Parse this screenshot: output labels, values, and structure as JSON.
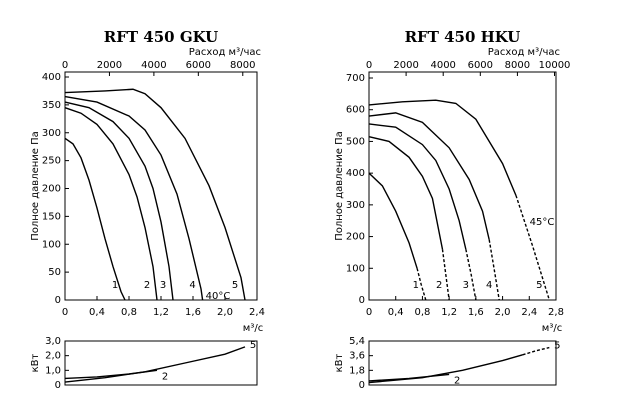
{
  "chart_data": [
    {
      "type": "line",
      "title": "RFT 450 GKU",
      "x_label": "м³/с",
      "x2_label": "Расход м³/час",
      "y_label": "Полное давление Па",
      "xlim": [
        0,
        2.4
      ],
      "xticks": [
        0,
        {
          "value": 0.4,
          "label": "0,4"
        },
        {
          "value": 0.8,
          "label": "0,8"
        },
        {
          "value": 1.2,
          "label": "1,2"
        },
        {
          "value": 1.6,
          "label": "1,6"
        },
        {
          "value": 2,
          "label": "2,0"
        },
        {
          "value": 2.4,
          "label": "2,4"
        }
      ],
      "x2lim": [
        0,
        8640
      ],
      "x2ticks": [
        0,
        2000,
        4000,
        6000,
        8000
      ],
      "ylim": [
        0,
        400
      ],
      "yticks": [
        0,
        50,
        100,
        150,
        200,
        250,
        300,
        350,
        400
      ],
      "annotation": "40°C",
      "color": "#000000",
      "series": [
        {
          "name": "1",
          "dashed_tail": false,
          "x": [
            0,
            0.1,
            0.2,
            0.3,
            0.4,
            0.5,
            0.6,
            0.7,
            0.75
          ],
          "values": [
            290,
            280,
            255,
            215,
            165,
            110,
            60,
            15,
            0
          ]
        },
        {
          "name": "2",
          "dashed_tail": false,
          "x": [
            0,
            0.2,
            0.4,
            0.6,
            0.8,
            0.9,
            1.0,
            1.1,
            1.15
          ],
          "values": [
            345,
            335,
            315,
            280,
            225,
            185,
            130,
            60,
            0
          ]
        },
        {
          "name": "3",
          "dashed_tail": false,
          "x": [
            0,
            0.3,
            0.6,
            0.8,
            1.0,
            1.1,
            1.2,
            1.3,
            1.35
          ],
          "values": [
            355,
            345,
            320,
            290,
            240,
            200,
            140,
            60,
            0
          ]
        },
        {
          "name": "4",
          "dashed_tail": false,
          "x": [
            0,
            0.4,
            0.8,
            1.0,
            1.2,
            1.4,
            1.55,
            1.7,
            1.72
          ],
          "values": [
            365,
            355,
            330,
            305,
            260,
            190,
            110,
            20,
            0
          ]
        },
        {
          "name": "5",
          "dashed_tail": false,
          "x": [
            0,
            0.5,
            0.85,
            1.0,
            1.2,
            1.5,
            1.8,
            2.0,
            2.2,
            2.25
          ],
          "values": [
            372,
            375,
            378,
            370,
            345,
            290,
            205,
            130,
            40,
            0
          ]
        }
      ]
    },
    {
      "type": "line",
      "y_label": "кВт",
      "xlim": [
        0,
        2.4
      ],
      "ylim": [
        0,
        3
      ],
      "yticks": [
        0,
        {
          "value": 1,
          "label": "1,0"
        },
        {
          "value": 2,
          "label": "2,0"
        },
        {
          "value": 3,
          "label": "3,0"
        }
      ],
      "color": "#000000",
      "series": [
        {
          "name": "2",
          "dashed_tail": false,
          "x": [
            0,
            0.4,
            0.8,
            1.15
          ],
          "values": [
            0.45,
            0.55,
            0.75,
            1.0
          ]
        },
        {
          "name": "5",
          "dashed_tail": false,
          "x": [
            0,
            0.5,
            1.0,
            1.5,
            2.0,
            2.25
          ],
          "values": [
            0.2,
            0.5,
            0.9,
            1.5,
            2.1,
            2.6
          ]
        }
      ]
    },
    {
      "type": "line",
      "title": "RFT 450 HKU",
      "x_label": "м³/с",
      "x2_label": "Расход м³/час",
      "y_label": "Полное давление Па",
      "xlim": [
        0,
        2.8
      ],
      "xticks": [
        0,
        {
          "value": 0.4,
          "label": "0,4"
        },
        {
          "value": 0.8,
          "label": "0,8"
        },
        {
          "value": 1.2,
          "label": "1,2"
        },
        {
          "value": 1.6,
          "label": "1,6"
        },
        {
          "value": 2,
          "label": "2,0"
        },
        {
          "value": 2.4,
          "label": "2,4"
        },
        {
          "value": 2.8,
          "label": "2,8"
        }
      ],
      "x2lim": [
        0,
        10080
      ],
      "x2ticks": [
        0,
        2000,
        4000,
        6000,
        8000,
        10000
      ],
      "ylim": [
        0,
        700
      ],
      "yticks": [
        0,
        100,
        200,
        300,
        400,
        500,
        600,
        700
      ],
      "annotation": "45°C",
      "color": "#000000",
      "series": [
        {
          "name": "1",
          "dashed_tail": true,
          "x": [
            0,
            0.2,
            0.4,
            0.6,
            0.72,
            0.78,
            0.85
          ],
          "values": [
            400,
            360,
            280,
            180,
            100,
            50,
            0
          ]
        },
        {
          "name": "2",
          "dashed_tail": true,
          "x": [
            0,
            0.3,
            0.6,
            0.8,
            0.95,
            1.1,
            1.15,
            1.2
          ],
          "values": [
            515,
            500,
            450,
            390,
            320,
            160,
            80,
            0
          ]
        },
        {
          "name": "3",
          "dashed_tail": true,
          "x": [
            0,
            0.4,
            0.8,
            1.0,
            1.2,
            1.35,
            1.45,
            1.53,
            1.6
          ],
          "values": [
            555,
            545,
            490,
            440,
            350,
            250,
            160,
            80,
            0
          ]
        },
        {
          "name": "4",
          "dashed_tail": true,
          "x": [
            0,
            0.4,
            0.8,
            1.2,
            1.5,
            1.7,
            1.8,
            1.88,
            1.95
          ],
          "values": [
            580,
            590,
            560,
            480,
            380,
            280,
            190,
            90,
            0
          ]
        },
        {
          "name": "5",
          "dashed_tail": true,
          "x": [
            0,
            0.5,
            1.0,
            1.3,
            1.6,
            2.0,
            2.2,
            2.45,
            2.7
          ],
          "values": [
            615,
            625,
            630,
            620,
            570,
            430,
            330,
            170,
            0
          ]
        }
      ]
    },
    {
      "type": "line",
      "y_label": "кВт",
      "xlim": [
        0,
        2.8
      ],
      "ylim": [
        0,
        5.4
      ],
      "yticks": [
        0,
        {
          "value": 1.8,
          "label": "1,8"
        },
        {
          "value": 3.6,
          "label": "3,6"
        },
        {
          "value": 5.4,
          "label": "5,4"
        }
      ],
      "color": "#000000",
      "series": [
        {
          "name": "2",
          "dashed_tail": false,
          "x": [
            0,
            0.6,
            1.2
          ],
          "values": [
            0.5,
            0.8,
            1.3
          ]
        },
        {
          "name": "5",
          "dashed_tail": true,
          "x": [
            0,
            0.8,
            1.4,
            2.0,
            2.3,
            2.5,
            2.7
          ],
          "values": [
            0.3,
            0.9,
            1.8,
            3.0,
            3.7,
            4.2,
            4.6
          ]
        }
      ]
    }
  ]
}
